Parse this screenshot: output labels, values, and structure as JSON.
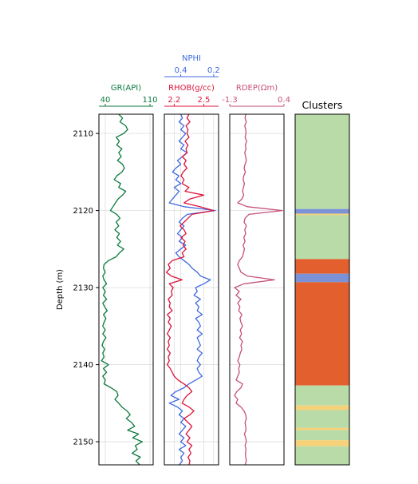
{
  "chart_data": {
    "type": "line",
    "depth_axis": {
      "label": "Depth (m)",
      "range": [
        2107.5,
        2153
      ],
      "inverted": true,
      "ticks": [
        2110,
        2120,
        2130,
        2140,
        2150
      ]
    },
    "tracks": [
      {
        "name": "GR(API)",
        "color": "#0b7a3e",
        "range": [
          30,
          115
        ],
        "ticks": [
          40,
          110
        ],
        "depth": [
          2107.5,
          2108,
          2108.5,
          2109,
          2109.5,
          2110,
          2110.5,
          2111,
          2111.5,
          2112,
          2112.5,
          2113,
          2113.5,
          2114,
          2114.5,
          2115,
          2115.5,
          2116,
          2116.5,
          2117,
          2117.5,
          2118,
          2118.5,
          2119,
          2119.5,
          2120,
          2120.5,
          2121,
          2121.5,
          2122,
          2122.5,
          2123,
          2123.5,
          2124,
          2124.5,
          2125,
          2125.5,
          2126,
          2126.5,
          2127,
          2127.5,
          2128,
          2128.5,
          2129,
          2129.5,
          2130,
          2130.5,
          2131,
          2131.5,
          2132,
          2132.5,
          2133,
          2133.5,
          2134,
          2134.5,
          2135,
          2135.5,
          2136,
          2136.5,
          2137,
          2137.5,
          2138,
          2138.5,
          2139,
          2139.5,
          2140,
          2140.5,
          2141,
          2141.5,
          2142,
          2142.5,
          2143,
          2143.5,
          2144,
          2144.5,
          2145,
          2145.5,
          2146,
          2146.5,
          2147,
          2147.5,
          2148,
          2148.5,
          2149,
          2149.5,
          2150,
          2150.5,
          2151,
          2151.5,
          2152,
          2152.5,
          2153
        ],
        "values": [
          61,
          67,
          63,
          72,
          75,
          69,
          57,
          62,
          58,
          66,
          61,
          65,
          59,
          67,
          70,
          66,
          58,
          54,
          64,
          61,
          72,
          67,
          60,
          56,
          52,
          48,
          58,
          63,
          57,
          61,
          55,
          62,
          58,
          64,
          59,
          69,
          62,
          57,
          45,
          38,
          37,
          40,
          36,
          38,
          42,
          36,
          40,
          37,
          42,
          36,
          39,
          43,
          37,
          41,
          38,
          36,
          40,
          36,
          41,
          37,
          35,
          39,
          36,
          38,
          34,
          45,
          37,
          42,
          36,
          40,
          38,
          49,
          58,
          60,
          55,
          61,
          66,
          74,
          79,
          73,
          81,
          86,
          75,
          92,
          83,
          98,
          87,
          90,
          82,
          95,
          88,
          94
        ]
      },
      {
        "name": "NPHI",
        "color": "#4169e1",
        "range": [
          0.5,
          0.17
        ],
        "ticks": [
          0.4,
          0.2
        ],
        "depth": [
          2107.5,
          2108,
          2108.5,
          2109,
          2109.5,
          2110,
          2110.5,
          2111,
          2111.5,
          2112,
          2112.5,
          2113,
          2113.5,
          2114,
          2114.5,
          2115,
          2115.5,
          2116,
          2116.5,
          2117,
          2117.5,
          2118,
          2118.5,
          2119,
          2119.5,
          2120,
          2120.5,
          2121,
          2121.5,
          2122,
          2122.5,
          2123,
          2123.5,
          2124,
          2124.5,
          2125,
          2125.5,
          2126,
          2126.5,
          2127,
          2127.5,
          2128,
          2128.5,
          2129,
          2129.5,
          2130,
          2130.5,
          2131,
          2131.5,
          2132,
          2132.5,
          2133,
          2133.5,
          2134,
          2134.5,
          2135,
          2135.5,
          2136,
          2136.5,
          2137,
          2137.5,
          2138,
          2138.5,
          2139,
          2139.5,
          2140,
          2140.5,
          2141,
          2141.5,
          2142,
          2142.5,
          2143,
          2143.5,
          2144,
          2144.5,
          2145,
          2145.5,
          2146,
          2146.5,
          2147,
          2147.5,
          2148,
          2148.5,
          2149,
          2149.5,
          2150,
          2150.5,
          2151,
          2151.5,
          2152,
          2152.5,
          2153
        ],
        "values": [
          0.4,
          0.39,
          0.41,
          0.38,
          0.4,
          0.37,
          0.39,
          0.41,
          0.38,
          0.4,
          0.36,
          0.39,
          0.42,
          0.4,
          0.43,
          0.45,
          0.41,
          0.43,
          0.4,
          0.44,
          0.41,
          0.43,
          0.45,
          0.47,
          0.38,
          0.19,
          0.36,
          0.39,
          0.41,
          0.38,
          0.4,
          0.42,
          0.39,
          0.41,
          0.37,
          0.4,
          0.43,
          0.41,
          0.38,
          0.35,
          0.33,
          0.3,
          0.28,
          0.22,
          0.26,
          0.31,
          0.3,
          0.32,
          0.28,
          0.31,
          0.29,
          0.3,
          0.27,
          0.31,
          0.29,
          0.28,
          0.3,
          0.27,
          0.3,
          0.29,
          0.28,
          0.3,
          0.27,
          0.29,
          0.3,
          0.28,
          0.3,
          0.29,
          0.27,
          0.31,
          0.35,
          0.38,
          0.43,
          0.46,
          0.41,
          0.47,
          0.42,
          0.39,
          0.41,
          0.38,
          0.4,
          0.37,
          0.39,
          0.41,
          0.38,
          0.4,
          0.37,
          0.41,
          0.38,
          0.4,
          0.39,
          0.41
        ]
      },
      {
        "name": "RHOB(g/cc)",
        "color": "#dc143c",
        "range": [
          2.1,
          2.65
        ],
        "ticks": [
          2.2,
          2.5
        ],
        "depth": [
          2107.5,
          2108,
          2108.5,
          2109,
          2109.5,
          2110,
          2110.5,
          2111,
          2111.5,
          2112,
          2112.5,
          2113,
          2113.5,
          2114,
          2114.5,
          2115,
          2115.5,
          2116,
          2116.5,
          2117,
          2117.5,
          2118,
          2118.5,
          2119,
          2119.5,
          2120,
          2120.5,
          2121,
          2121.5,
          2122,
          2122.5,
          2123,
          2123.5,
          2124,
          2124.5,
          2125,
          2125.5,
          2126,
          2126.5,
          2127,
          2127.5,
          2128,
          2128.5,
          2129,
          2129.5,
          2130,
          2130.5,
          2131,
          2131.5,
          2132,
          2132.5,
          2133,
          2133.5,
          2134,
          2134.5,
          2135,
          2135.5,
          2136,
          2136.5,
          2137,
          2137.5,
          2138,
          2138.5,
          2139,
          2139.5,
          2140,
          2140.5,
          2141,
          2141.5,
          2142,
          2142.5,
          2143,
          2143.5,
          2144,
          2144.5,
          2145,
          2145.5,
          2146,
          2146.5,
          2147,
          2147.5,
          2148,
          2148.5,
          2149,
          2149.5,
          2150,
          2150.5,
          2151,
          2151.5,
          2152,
          2152.5,
          2153
        ],
        "values": [
          2.35,
          2.33,
          2.36,
          2.32,
          2.34,
          2.33,
          2.35,
          2.31,
          2.34,
          2.32,
          2.33,
          2.28,
          2.32,
          2.3,
          2.33,
          2.29,
          2.27,
          2.3,
          2.28,
          2.35,
          2.31,
          2.5,
          2.36,
          2.3,
          2.46,
          2.6,
          2.38,
          2.34,
          2.3,
          2.26,
          2.3,
          2.32,
          2.27,
          2.31,
          2.29,
          2.32,
          2.28,
          2.3,
          2.18,
          2.14,
          2.16,
          2.12,
          2.17,
          2.28,
          2.15,
          2.19,
          2.17,
          2.18,
          2.14,
          2.16,
          2.15,
          2.18,
          2.13,
          2.16,
          2.14,
          2.17,
          2.15,
          2.13,
          2.16,
          2.14,
          2.15,
          2.13,
          2.16,
          2.14,
          2.15,
          2.13,
          2.16,
          2.18,
          2.2,
          2.24,
          2.3,
          2.35,
          2.38,
          2.33,
          2.3,
          2.28,
          2.35,
          2.4,
          2.36,
          2.3,
          2.34,
          2.38,
          2.35,
          2.32,
          2.36,
          2.33,
          2.38,
          2.35,
          2.37,
          2.34,
          2.36,
          2.35
        ]
      },
      {
        "name": "RDEP(Ωm)",
        "color": "#c64f7c",
        "range": [
          -1.3,
          0.4
        ],
        "ticks": [
          -1.3,
          0.4
        ],
        "depth": [
          2107.5,
          2108,
          2108.5,
          2109,
          2109.5,
          2110,
          2110.5,
          2111,
          2111.5,
          2112,
          2112.5,
          2113,
          2113.5,
          2114,
          2114.5,
          2115,
          2115.5,
          2116,
          2116.5,
          2117,
          2117.5,
          2118,
          2118.5,
          2119,
          2119.5,
          2120,
          2120.5,
          2121,
          2121.5,
          2122,
          2122.5,
          2123,
          2123.5,
          2124,
          2124.5,
          2125,
          2125.5,
          2126,
          2126.5,
          2127,
          2127.5,
          2128,
          2128.5,
          2129,
          2129.5,
          2130,
          2130.5,
          2131,
          2131.5,
          2132,
          2132.5,
          2133,
          2133.5,
          2134,
          2134.5,
          2135,
          2135.5,
          2136,
          2136.5,
          2137,
          2137.5,
          2138,
          2138.5,
          2139,
          2139.5,
          2140,
          2140.5,
          2141,
          2141.5,
          2142,
          2142.5,
          2143,
          2143.5,
          2144,
          2144.5,
          2145,
          2145.5,
          2146,
          2146.5,
          2147,
          2147.5,
          2148,
          2148.5,
          2149,
          2149.5,
          2150,
          2150.5,
          2151,
          2151.5,
          2152,
          2152.5,
          2153
        ],
        "values": [
          -0.8,
          -0.82,
          -0.78,
          -0.83,
          -0.8,
          -0.79,
          -0.82,
          -0.77,
          -0.81,
          -0.79,
          -0.83,
          -0.8,
          -0.78,
          -0.82,
          -0.85,
          -0.81,
          -0.86,
          -0.88,
          -0.84,
          -0.87,
          -0.9,
          -0.86,
          -0.92,
          -1.05,
          -0.75,
          0.35,
          -0.7,
          -0.82,
          -0.85,
          -0.78,
          -0.83,
          -0.8,
          -0.86,
          -0.82,
          -0.88,
          -0.84,
          -0.87,
          -0.9,
          -1.0,
          -1.05,
          -1.0,
          -0.95,
          -0.75,
          0.1,
          -0.85,
          -1.15,
          -1.0,
          -1.1,
          -0.95,
          -1.05,
          -0.98,
          -1.02,
          -0.92,
          -0.98,
          -0.95,
          -0.9,
          -0.97,
          -0.93,
          -0.99,
          -0.9,
          -0.95,
          -0.92,
          -0.97,
          -1.0,
          -1.05,
          -0.98,
          -1.02,
          -1.0,
          -1.05,
          -1.1,
          -0.9,
          -0.95,
          -1.08,
          -1.15,
          -1.05,
          -1.1,
          -0.95,
          -0.85,
          -0.8,
          -0.78,
          -0.82,
          -0.8,
          -0.79,
          -0.84,
          -0.8,
          -0.78,
          -0.82,
          -0.79,
          -0.81,
          -0.8,
          -0.78,
          -0.82
        ]
      }
    ],
    "clusters": {
      "title": "Clusters",
      "intervals": [
        {
          "top": 2107.5,
          "base": 2119.8,
          "color": "#b8dba8"
        },
        {
          "top": 2119.8,
          "base": 2120.4,
          "color": "#7b93d6"
        },
        {
          "top": 2120.4,
          "base": 2120.6,
          "color": "#f5d27a"
        },
        {
          "top": 2120.6,
          "base": 2126.3,
          "color": "#b8dba8"
        },
        {
          "top": 2126.3,
          "base": 2128.2,
          "color": "#e35f2e"
        },
        {
          "top": 2128.2,
          "base": 2129.3,
          "color": "#7b93d6"
        },
        {
          "top": 2129.3,
          "base": 2142.7,
          "color": "#e35f2e"
        },
        {
          "top": 2142.7,
          "base": 2145.3,
          "color": "#b8dba8"
        },
        {
          "top": 2145.3,
          "base": 2145.9,
          "color": "#f5d27a"
        },
        {
          "top": 2145.9,
          "base": 2148.2,
          "color": "#b8dba8"
        },
        {
          "top": 2148.2,
          "base": 2148.5,
          "color": "#f5d27a"
        },
        {
          "top": 2148.5,
          "base": 2149.8,
          "color": "#b8dba8"
        },
        {
          "top": 2149.8,
          "base": 2150.6,
          "color": "#f5d27a"
        },
        {
          "top": 2150.6,
          "base": 2153,
          "color": "#b8dba8"
        }
      ]
    },
    "grid": true
  }
}
